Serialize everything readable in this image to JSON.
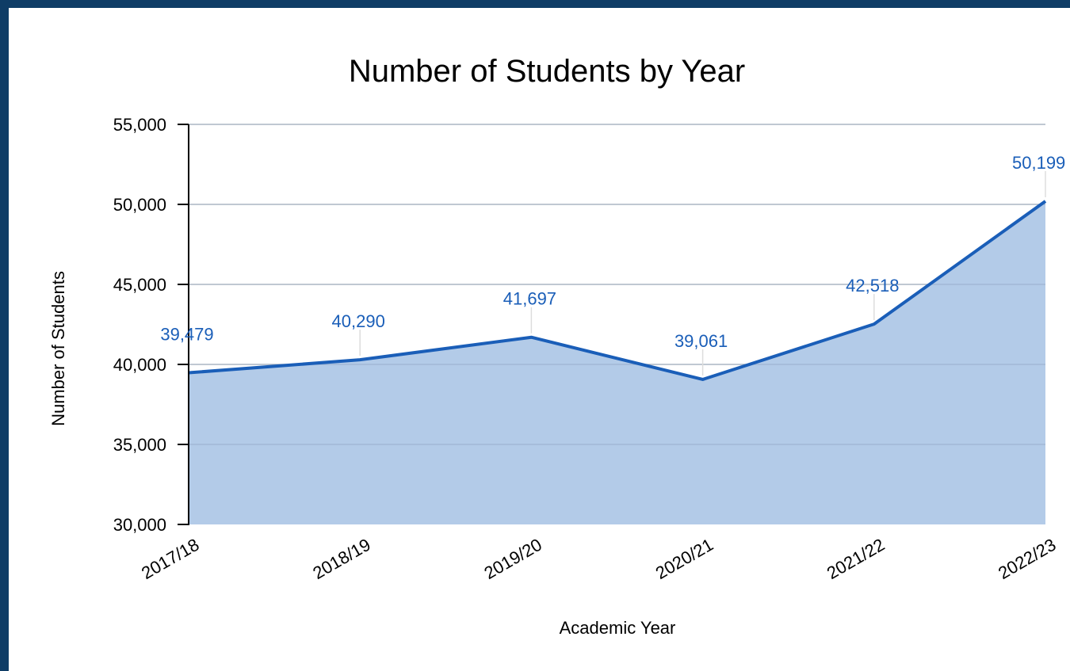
{
  "chart_data": {
    "type": "area",
    "title": "Number of Students by Year",
    "xlabel": "Academic Year",
    "ylabel": "Number of Students",
    "categories": [
      "2017/18",
      "2018/19",
      "2019/20",
      "2020/21",
      "2021/22",
      "2022/23"
    ],
    "values": [
      39479,
      40290,
      41697,
      39061,
      42518,
      50199
    ],
    "data_labels": [
      "39,479",
      "40,290",
      "41,697",
      "39,061",
      "42,518",
      "50,199"
    ],
    "ylim": [
      30000,
      55000
    ],
    "yticks": [
      30000,
      35000,
      40000,
      45000,
      50000,
      55000
    ],
    "ytick_labels": [
      "30,000",
      "35,000",
      "40,000",
      "45,000",
      "50,000",
      "55,000"
    ],
    "grid": true,
    "legend": "none",
    "colors": {
      "line": "#1a5eb8",
      "fill": "#b3cbe8",
      "label": "#1a5eb8",
      "grid": "#cccccc",
      "frame": "#0f3d66"
    }
  }
}
